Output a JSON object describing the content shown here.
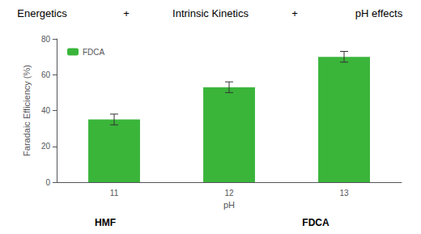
{
  "chart_data": {
    "type": "bar",
    "categories": [
      "11",
      "12",
      "13"
    ],
    "series": [
      {
        "name": "FDCA",
        "color": "#3ab53a",
        "values": [
          35,
          53,
          70
        ],
        "errors": [
          3,
          3,
          3
        ]
      }
    ],
    "xlabel": "pH",
    "ylabel": "Faradaic Efficiency (%)",
    "ylim": [
      0,
      80
    ],
    "yticks": [
      0,
      20,
      40,
      60,
      80
    ],
    "grid": false,
    "legend": "upper left",
    "annotations": [
      [
        "Energetics",
        "+",
        "Intrinsic Kinetics",
        "+",
        "pH effects"
      ],
      [
        "HMF",
        "FDCA"
      ]
    ]
  }
}
